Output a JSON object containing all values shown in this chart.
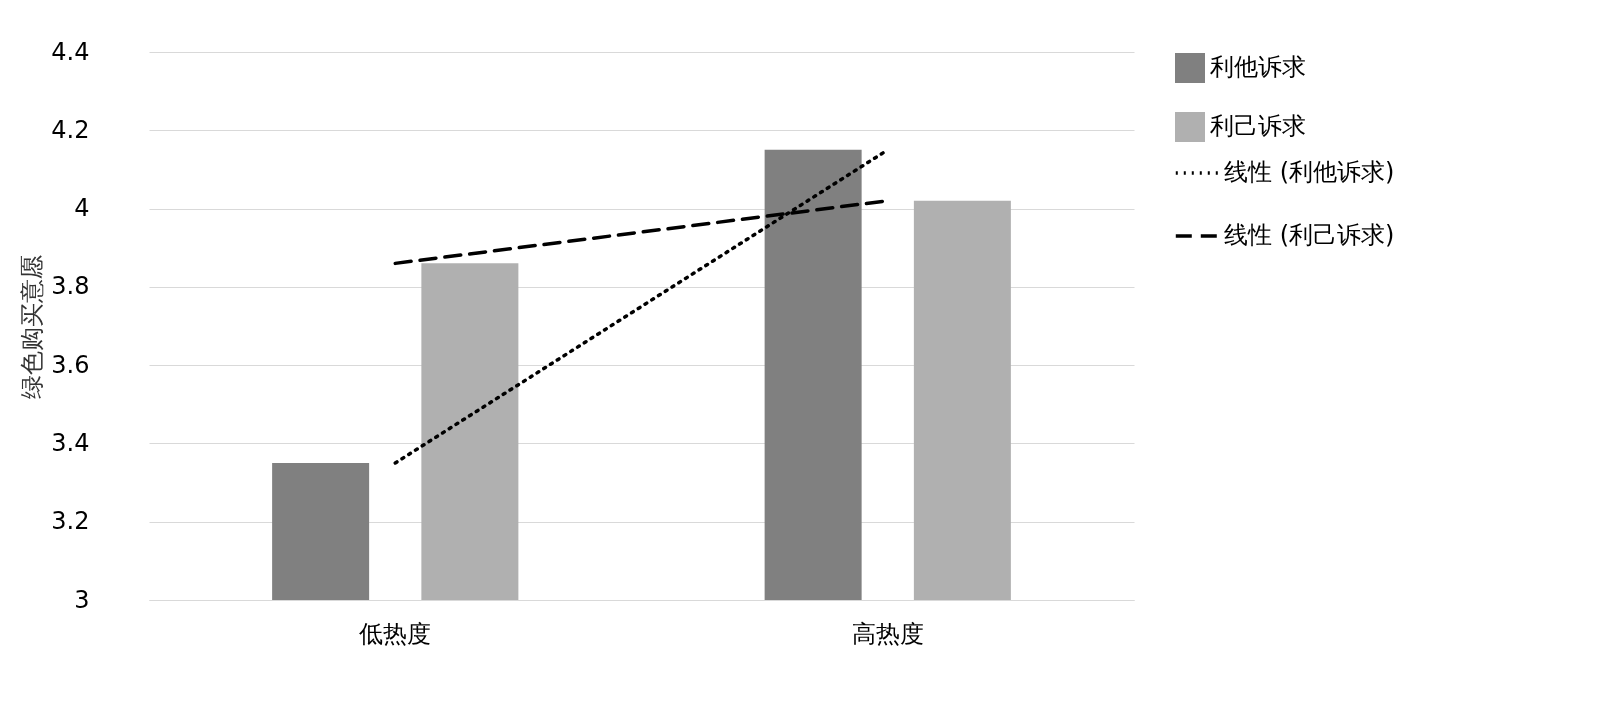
{
  "chart_data": {
    "type": "bar",
    "ylabel": "绿色购买意愿",
    "categories": [
      "低热度",
      "高热度"
    ],
    "series": [
      {
        "name": "利他诉求",
        "type": "bar",
        "color": "#808080",
        "values": [
          3.35,
          4.15
        ]
      },
      {
        "name": "利己诉求",
        "type": "bar",
        "color": "#b0b0b0",
        "values": [
          3.86,
          4.02
        ]
      },
      {
        "name": "线性 (利他诉求)",
        "type": "line",
        "line_style": "dotted",
        "color": "#000000",
        "values": [
          3.35,
          4.15
        ]
      },
      {
        "name": "线性 (利己诉求)",
        "type": "line",
        "line_style": "dashed",
        "color": "#000000",
        "values": [
          3.86,
          4.02
        ]
      }
    ],
    "ylim": [
      3,
      4.4
    ],
    "yticks": [
      3,
      3.2,
      3.4,
      3.6,
      3.8,
      4,
      4.2,
      4.4
    ],
    "grid": "y",
    "legend": "right"
  }
}
